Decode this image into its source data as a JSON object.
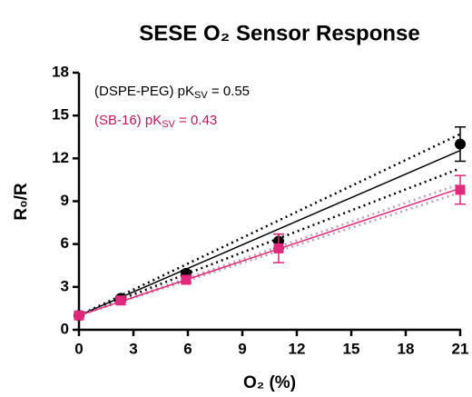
{
  "chart_data": {
    "type": "scatter",
    "title": "SESE O₂ Sensor Response",
    "xlabel": "O₂ (%)",
    "ylabel": "R₀/R",
    "annotations": [
      {
        "text": "(DSPE-PEG) pK",
        "sub": "SV",
        "tail": " = 0.55",
        "color": "#000000"
      },
      {
        "text": "(SB-16) pK",
        "sub": "SV",
        "tail": " = 0.43",
        "color": "#c2185b"
      }
    ],
    "x": [
      0,
      2.3,
      5.9,
      11,
      21
    ],
    "series": [
      {
        "color": "#000000",
        "marker": "circle",
        "values": [
          1,
          2.2,
          3.95,
          6.2,
          13.0
        ],
        "errors": [
          0.1,
          0.1,
          0.2,
          0.5,
          1.2
        ]
      },
      {
        "color": "#e0287c",
        "marker": "square",
        "values": [
          1,
          2.05,
          3.5,
          5.7,
          9.8
        ],
        "errors": [
          0.1,
          0.1,
          0.2,
          1.0,
          1.0
        ]
      }
    ],
    "fits": [
      {
        "color": "#000000",
        "band_color": "#000000",
        "x": [
          0,
          21
        ],
        "values": [
          1,
          12.55
        ],
        "upper": [
          1,
          13.7
        ],
        "lower": [
          1,
          11.3
        ]
      },
      {
        "color": "#e0287c",
        "band_color": "#c79aae",
        "x": [
          0,
          21
        ],
        "values": [
          1,
          9.9
        ],
        "upper": [
          1,
          10.2
        ],
        "lower": [
          1,
          9.6
        ]
      }
    ],
    "xlim": [
      0,
      21
    ],
    "xticks": [
      0,
      3,
      6,
      9,
      12,
      15,
      18,
      21
    ],
    "ylim": [
      0,
      18
    ],
    "yticks": [
      0,
      3,
      6,
      9,
      12,
      15,
      18
    ]
  }
}
